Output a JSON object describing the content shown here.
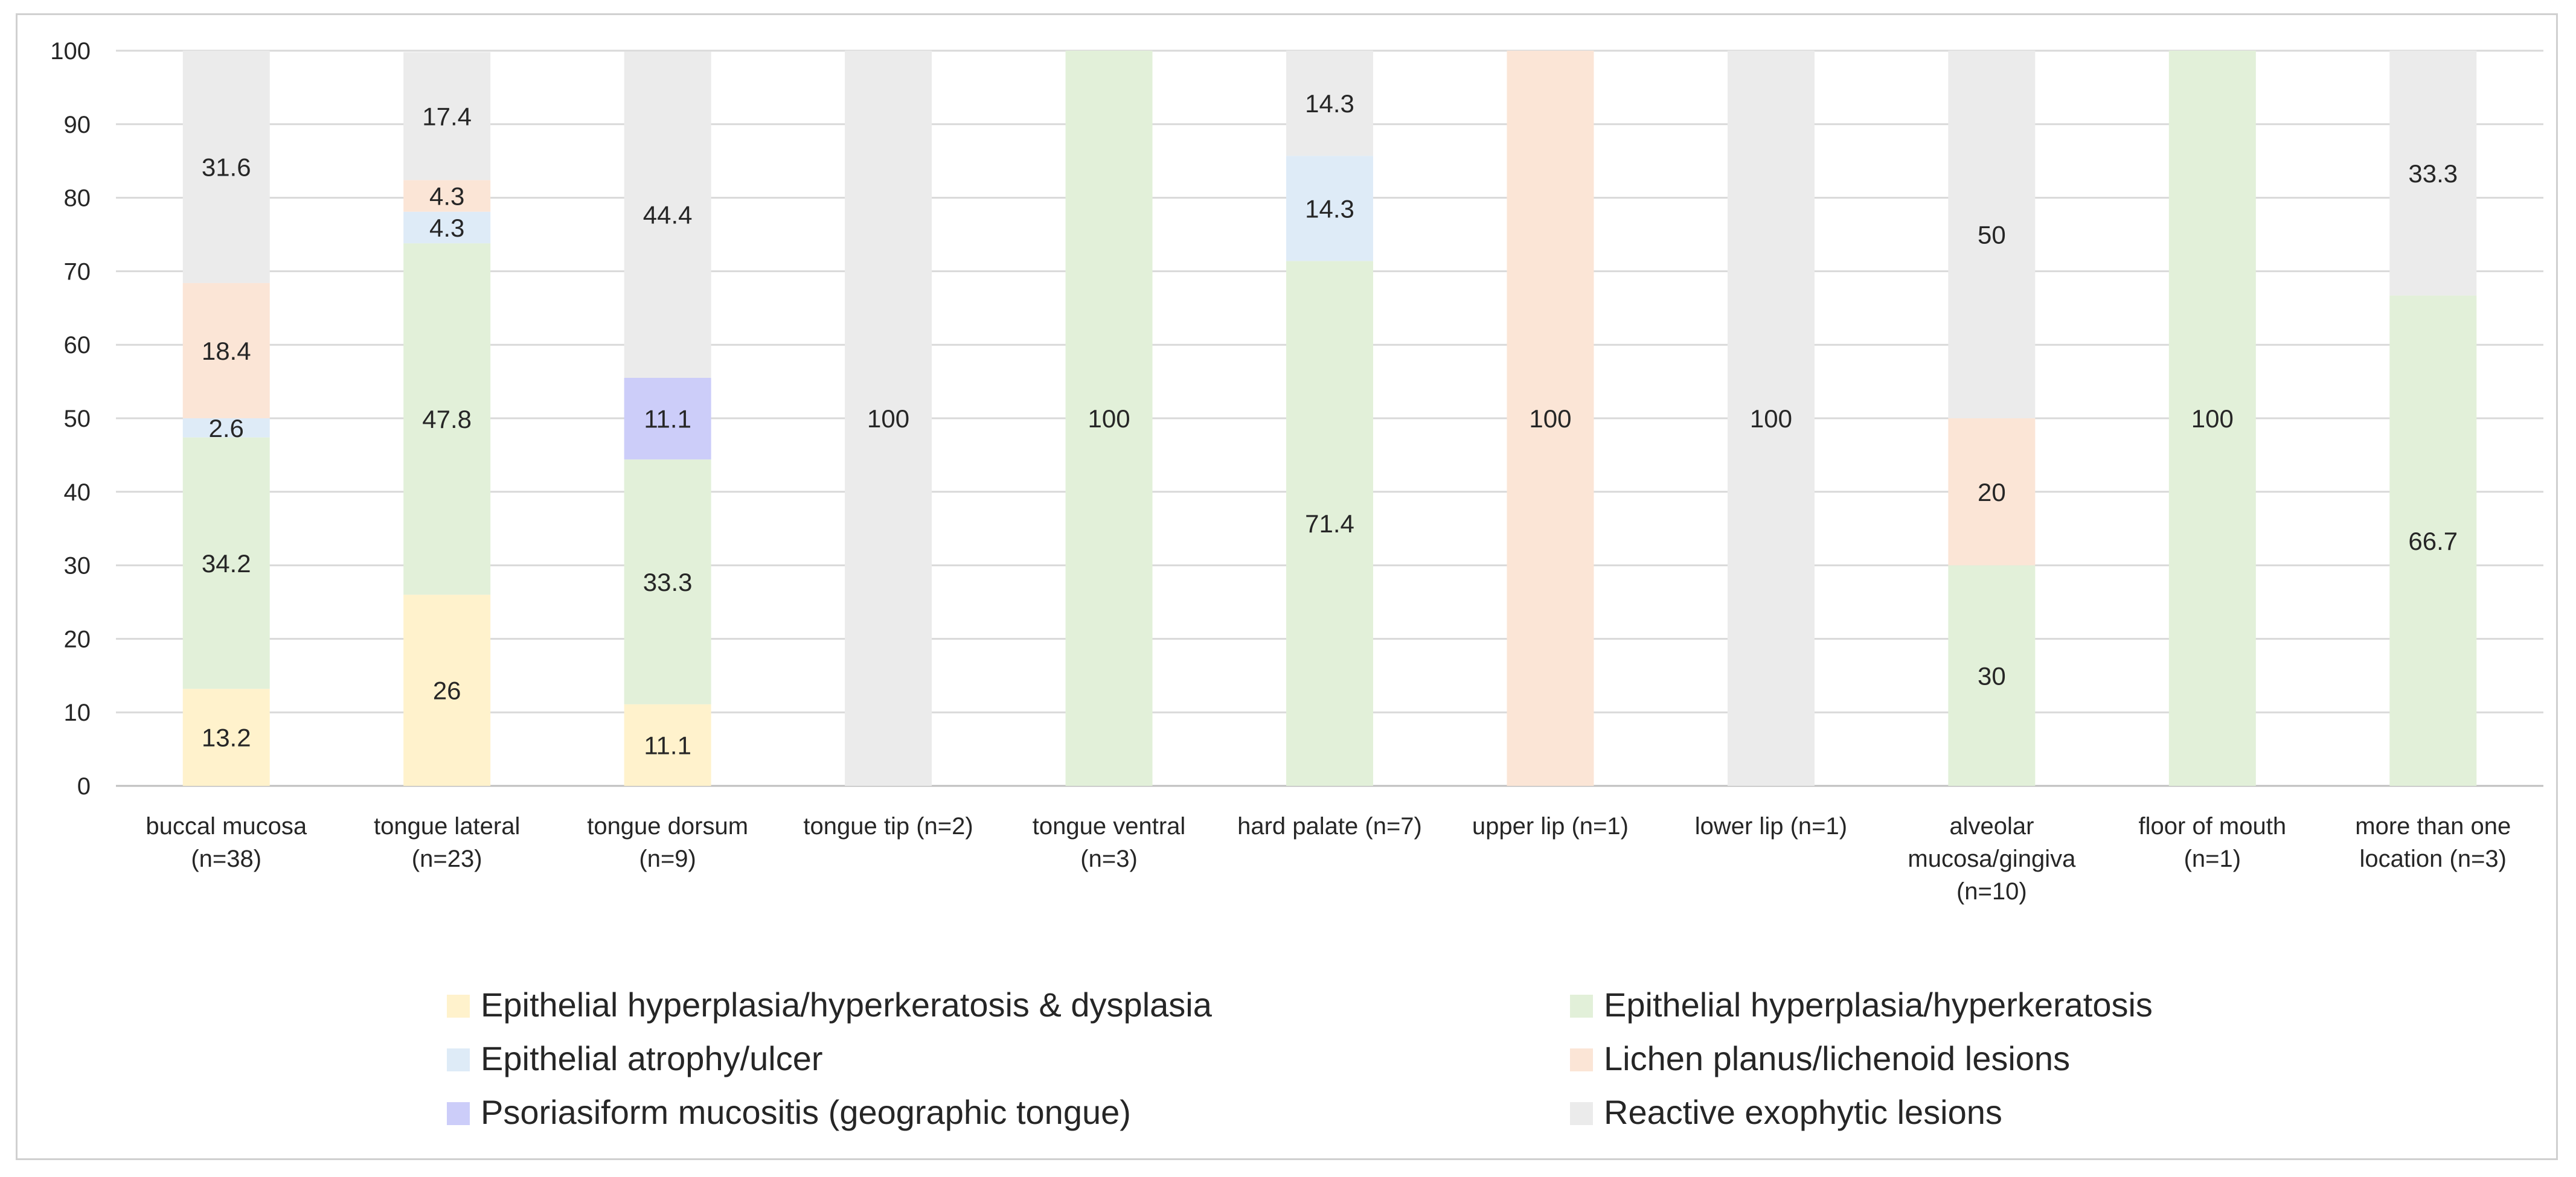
{
  "chart_data": {
    "type": "bar",
    "stacked": true,
    "categories": [
      [
        "buccal mucosa",
        "(n=38)"
      ],
      [
        "tongue lateral",
        "(n=23)"
      ],
      [
        "tongue dorsum",
        "(n=9)"
      ],
      [
        "tongue tip (n=2)"
      ],
      [
        "tongue ventral",
        "(n=3)"
      ],
      [
        "hard palate (n=7)"
      ],
      [
        "upper lip (n=1)"
      ],
      [
        "lower lip (n=1)"
      ],
      [
        "alveolar",
        "mucosa/gingiva",
        "(n=10)"
      ],
      [
        "floor of mouth",
        "(n=1)"
      ],
      [
        "more than one",
        "location (n=3)"
      ]
    ],
    "series": [
      {
        "name": "Epithelial hyperplasia/hyperkeratosis & dysplasia",
        "color": "#fff2cc",
        "values": [
          13.2,
          26,
          11.1,
          0,
          0,
          0,
          0,
          0,
          0,
          0,
          0
        ]
      },
      {
        "name": "Epithelial hyperplasia/hyperkeratosis",
        "color": "#e2f0d9",
        "values": [
          34.2,
          47.8,
          33.3,
          0,
          100,
          71.4,
          0,
          0,
          30,
          100,
          66.7
        ]
      },
      {
        "name": "Epithelial atrophy/ulcer",
        "color": "#deebf7",
        "values": [
          2.6,
          4.3,
          0,
          0,
          0,
          14.3,
          0,
          0,
          0,
          0,
          0
        ]
      },
      {
        "name": "Lichen planus/lichenoid lesions",
        "color": "#fbe5d6",
        "values": [
          18.4,
          4.3,
          0,
          0,
          0,
          0,
          100,
          0,
          20,
          0,
          0
        ]
      },
      {
        "name": "Psoriasiform mucositis (geographic tongue)",
        "color": "#cccdf9",
        "values": [
          0,
          0,
          11.1,
          0,
          0,
          0,
          0,
          0,
          0,
          0,
          0
        ]
      },
      {
        "name": "Reactive exophytic lesions",
        "color": "#ebebeb",
        "values": [
          31.6,
          17.4,
          44.4,
          100,
          0,
          14.3,
          0,
          100,
          50,
          0,
          33.3
        ]
      }
    ],
    "ylim": [
      0,
      100
    ],
    "yticks": [
      0,
      10,
      20,
      30,
      40,
      50,
      60,
      70,
      80,
      90,
      100
    ],
    "grid": true,
    "legend_position": "bottom"
  }
}
